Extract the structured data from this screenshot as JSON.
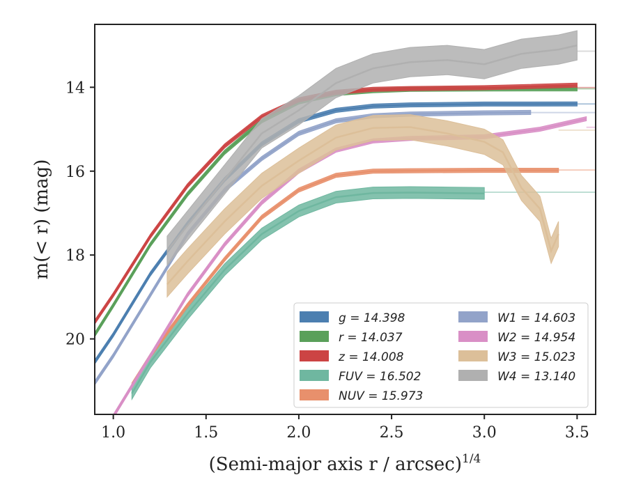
{
  "chart_data": {
    "type": "line",
    "xlabel": "(Semi-major axis r / arcsec)",
    "xlabel_exponent": "1/4",
    "ylabel": "m(< r) (mag)",
    "xlim": [
      0.9,
      3.6
    ],
    "ylim": [
      21.8,
      12.5
    ],
    "y_inverted": true,
    "x_ticks": [
      1.0,
      1.5,
      2.0,
      2.5,
      3.0,
      3.5
    ],
    "x_tick_labels": [
      "1.0",
      "1.5",
      "2.0",
      "2.5",
      "3.0",
      "3.5"
    ],
    "y_ticks": [
      14,
      16,
      18,
      20
    ],
    "y_tick_labels": [
      "14",
      "16",
      "18",
      "20"
    ],
    "grid": false,
    "legend": {
      "position": "lower-right",
      "columns": 2
    },
    "series": [
      {
        "name": "g = 14.398",
        "color": "#4c7fb0",
        "asymptote": 14.398,
        "x": [
          0.9,
          1.0,
          1.2,
          1.4,
          1.6,
          1.8,
          2.0,
          2.2,
          2.4,
          2.6,
          3.0,
          3.5
        ],
        "y": [
          20.55,
          19.9,
          18.45,
          17.25,
          16.2,
          15.35,
          14.8,
          14.55,
          14.45,
          14.42,
          14.4,
          14.398
        ],
        "band": 0.05
      },
      {
        "name": "r = 14.037",
        "color": "#5aa05a",
        "asymptote": 14.037,
        "x": [
          0.9,
          1.0,
          1.2,
          1.4,
          1.6,
          1.8,
          2.0,
          2.2,
          2.4,
          2.6,
          3.0,
          3.5
        ],
        "y": [
          19.9,
          19.2,
          17.75,
          16.55,
          15.55,
          14.8,
          14.35,
          14.15,
          14.08,
          14.05,
          14.04,
          14.037
        ],
        "band": 0.05
      },
      {
        "name": "z = 14.008",
        "color": "#cc4444",
        "asymptote": 14.008,
        "x": [
          0.9,
          1.0,
          1.2,
          1.4,
          1.6,
          1.8,
          2.0,
          2.2,
          2.4,
          2.6,
          3.0,
          3.5
        ],
        "y": [
          19.6,
          18.95,
          17.55,
          16.35,
          15.4,
          14.7,
          14.3,
          14.12,
          14.05,
          14.03,
          14.01,
          13.95
        ],
        "band": 0.05
      },
      {
        "name": "FUV = 16.502",
        "color": "#6fb7a0",
        "asymptote": 16.502,
        "x": [
          1.1,
          1.2,
          1.4,
          1.6,
          1.8,
          2.0,
          2.2,
          2.4,
          2.6,
          2.8,
          3.0
        ],
        "y": [
          21.3,
          20.55,
          19.4,
          18.35,
          17.5,
          16.95,
          16.62,
          16.52,
          16.51,
          16.52,
          16.53
        ],
        "band": 0.14
      },
      {
        "name": "NUV = 15.973",
        "color": "#e8906c",
        "asymptote": 15.973,
        "x": [
          1.1,
          1.2,
          1.4,
          1.6,
          1.8,
          2.0,
          2.2,
          2.4,
          2.6,
          3.0,
          3.4
        ],
        "y": [
          21.1,
          20.4,
          19.2,
          18.1,
          17.1,
          16.45,
          16.1,
          16.0,
          15.99,
          15.98,
          15.98
        ],
        "band": 0.05
      },
      {
        "name": "W1 = 14.603",
        "color": "#92a3c9",
        "asymptote": 14.603,
        "x": [
          0.9,
          1.0,
          1.2,
          1.4,
          1.6,
          1.8,
          2.0,
          2.2,
          2.4,
          2.6,
          3.0,
          3.25
        ],
        "y": [
          21.05,
          20.4,
          18.95,
          17.5,
          16.45,
          15.7,
          15.1,
          14.8,
          14.68,
          14.64,
          14.61,
          14.6
        ],
        "band": 0.05
      },
      {
        "name": "W2 = 14.954",
        "color": "#d98fc6",
        "asymptote": 14.954,
        "x": [
          1.0,
          1.2,
          1.4,
          1.6,
          1.8,
          2.0,
          2.2,
          2.4,
          2.6,
          3.0,
          3.3,
          3.55
        ],
        "y": [
          21.85,
          20.4,
          18.95,
          17.75,
          16.75,
          16.0,
          15.5,
          15.28,
          15.22,
          15.18,
          15.0,
          14.75
        ],
        "band": 0.05
      },
      {
        "name": "W3 = 15.023",
        "color": "#dcbf99",
        "asymptote": 15.023,
        "x": [
          1.29,
          1.4,
          1.6,
          1.8,
          2.0,
          2.2,
          2.4,
          2.6,
          2.8,
          3.0,
          3.1,
          3.2,
          3.3,
          3.36,
          3.4
        ],
        "y": [
          18.7,
          18.15,
          17.2,
          16.35,
          15.75,
          15.2,
          14.97,
          14.95,
          15.1,
          15.3,
          15.55,
          16.4,
          16.9,
          17.9,
          17.5
        ],
        "band": 0.3
      },
      {
        "name": "W4 = 13.140",
        "color": "#b0b0b0",
        "asymptote": 13.14,
        "x": [
          1.29,
          1.4,
          1.6,
          1.8,
          2.0,
          2.2,
          2.4,
          2.6,
          2.8,
          3.0,
          3.2,
          3.4,
          3.5
        ],
        "y": [
          17.9,
          17.3,
          16.2,
          15.1,
          14.55,
          13.9,
          13.55,
          13.4,
          13.35,
          13.45,
          13.2,
          13.1,
          13.0
        ],
        "band": 0.35
      }
    ]
  }
}
